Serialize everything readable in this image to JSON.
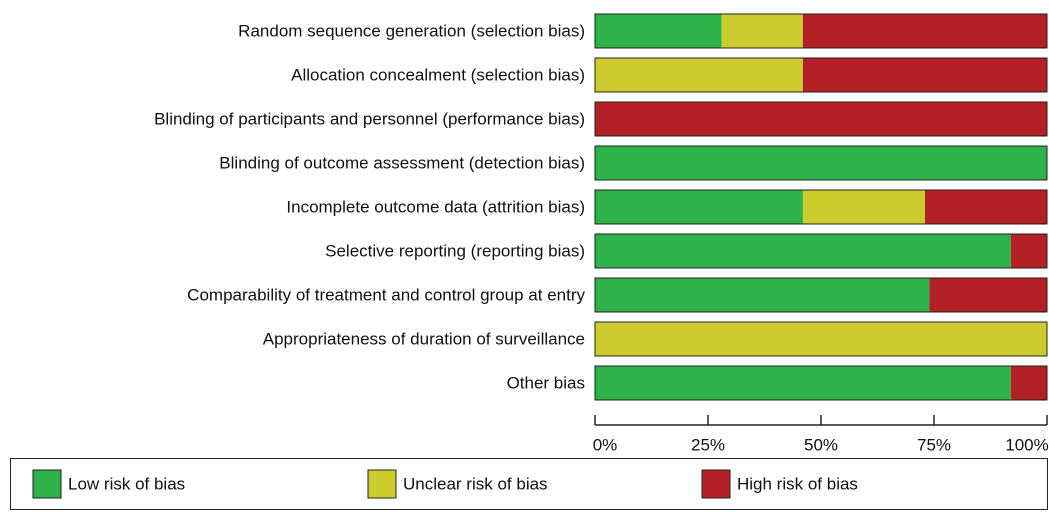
{
  "chart_data": {
    "type": "stacked-bar-horizontal",
    "categories": [
      "Random sequence generation (selection bias)",
      "Allocation concealment (selection bias)",
      "Blinding of participants and personnel (performance bias)",
      "Blinding of outcome assessment (detection bias)",
      "Incomplete outcome data (attrition bias)",
      "Selective reporting (reporting bias)",
      "Comparability of treatment and control group at entry",
      "Appropriateness of duration of surveillance",
      "Other bias"
    ],
    "series": [
      {
        "name": "Low risk of bias",
        "color": "#2db24a",
        "values": [
          28,
          0,
          0,
          100,
          46,
          92,
          74,
          0,
          92
        ]
      },
      {
        "name": "Unclear risk of bias",
        "color": "#cccc2e",
        "values": [
          18,
          46,
          0,
          0,
          27,
          0,
          0,
          100,
          0
        ]
      },
      {
        "name": "High risk of bias",
        "color": "#b32025",
        "values": [
          54,
          54,
          100,
          0,
          27,
          8,
          26,
          0,
          8
        ]
      }
    ],
    "xlim": [
      0,
      100
    ],
    "xticks": [
      {
        "value": 0,
        "label": "0%"
      },
      {
        "value": 25,
        "label": "25%"
      },
      {
        "value": 50,
        "label": "50%"
      },
      {
        "value": 75,
        "label": "75%"
      },
      {
        "value": 100,
        "label": "100%"
      }
    ]
  }
}
